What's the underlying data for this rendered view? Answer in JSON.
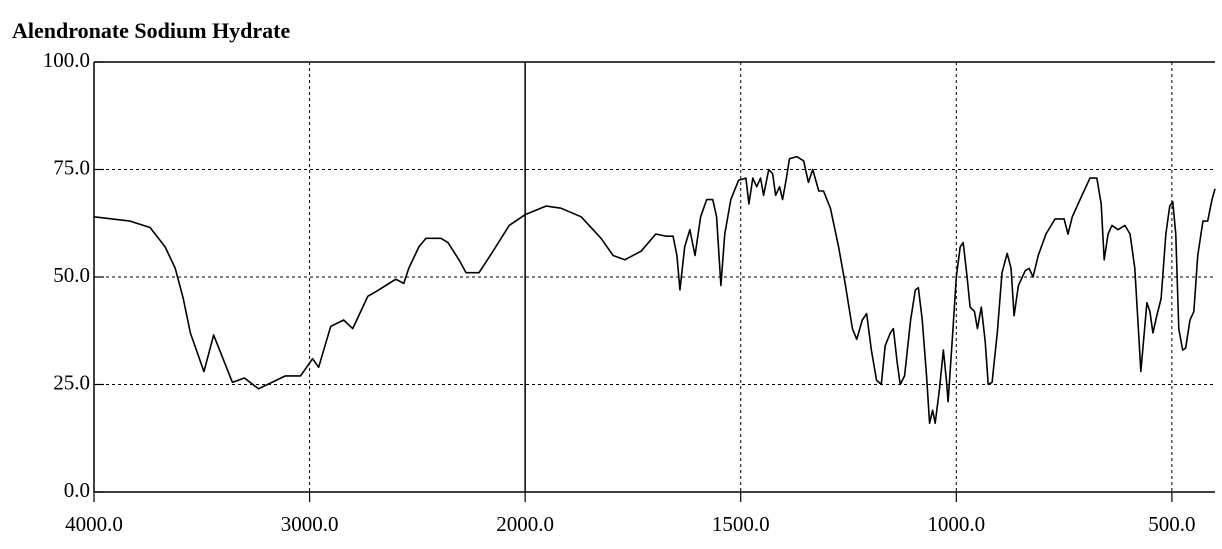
{
  "chart_data": {
    "type": "line",
    "title": "Alendronate Sodium Hydrate",
    "xlim": [
      4000,
      400
    ],
    "xbreak": 2000,
    "ylim": [
      0,
      100
    ],
    "xticks": [
      {
        "value": 4000,
        "label": "4000.0"
      },
      {
        "value": 3000,
        "label": "3000.0"
      },
      {
        "value": 2000,
        "label": "2000.0"
      },
      {
        "value": 1500,
        "label": "1500.0"
      },
      {
        "value": 1000,
        "label": "1000.0"
      },
      {
        "value": 500,
        "label": "500.0"
      }
    ],
    "yticks": [
      {
        "value": 0,
        "label": "0.0"
      },
      {
        "value": 25,
        "label": "25.0"
      },
      {
        "value": 50,
        "label": "50.0"
      },
      {
        "value": 75,
        "label": "75.0"
      },
      {
        "value": 100,
        "label": "100.0"
      }
    ],
    "grid": true,
    "color": "#000000",
    "x": [
      4000,
      3833,
      3740,
      3670,
      3623,
      3586,
      3553,
      3490,
      3445,
      3358,
      3302,
      3237,
      3112,
      3042,
      2986,
      2958,
      2902,
      2842,
      2800,
      2730,
      2679,
      2600,
      2563,
      2540,
      2493,
      2460,
      2391,
      2358,
      2307,
      2274,
      2214,
      2149,
      2074,
      2000,
      1951,
      1917,
      1870,
      1824,
      1796,
      1769,
      1731,
      1697,
      1674,
      1657,
      1648,
      1641,
      1630,
      1618,
      1606,
      1593,
      1579,
      1565,
      1556,
      1546,
      1537,
      1523,
      1505,
      1488,
      1481,
      1472,
      1463,
      1454,
      1447,
      1435,
      1426,
      1419,
      1410,
      1403,
      1394,
      1387,
      1370,
      1354,
      1343,
      1333,
      1319,
      1308,
      1292,
      1273,
      1257,
      1241,
      1231,
      1218,
      1208,
      1197,
      1185,
      1174,
      1165,
      1153,
      1146,
      1137,
      1130,
      1120,
      1106,
      1095,
      1088,
      1079,
      1069,
      1062,
      1055,
      1049,
      1039,
      1030,
      1023,
      1019,
      1009,
      1000,
      991,
      984,
      975,
      968,
      958,
      951,
      942,
      933,
      926,
      917,
      905,
      894,
      882,
      873,
      866,
      856,
      840,
      831,
      822,
      810,
      792,
      771,
      750,
      741,
      731,
      713,
      690,
      674,
      664,
      657,
      648,
      639,
      625,
      609,
      597,
      586,
      576,
      572,
      565,
      558,
      551,
      544,
      535,
      525,
      514,
      505,
      498,
      491,
      484,
      475,
      468,
      458,
      449,
      440,
      428,
      417,
      407,
      400
    ],
    "values": [
      64,
      63,
      61.5,
      57,
      52,
      45,
      37,
      28,
      36.5,
      25.5,
      26.5,
      24,
      27,
      27,
      31,
      29,
      38.5,
      40,
      38,
      45.5,
      47,
      49.5,
      48.5,
      52,
      57,
      59,
      59,
      58,
      54,
      51,
      51,
      56,
      62,
      64.5,
      66.5,
      66,
      64,
      59,
      55,
      54,
      56,
      60,
      59.5,
      59.5,
      55,
      47,
      57,
      61,
      55,
      64,
      68,
      68,
      64,
      48,
      60,
      68,
      72.5,
      73,
      67,
      73,
      71,
      73,
      69,
      75,
      74,
      69,
      71,
      68,
      73,
      77.5,
      78,
      77,
      72,
      75,
      70,
      70,
      66,
      57,
      48,
      38,
      35.5,
      40,
      41.5,
      33,
      26,
      25,
      34,
      37,
      38,
      30,
      25,
      27,
      40,
      47,
      47.5,
      40,
      27,
      16,
      19,
      16,
      24,
      33,
      26,
      21,
      36,
      50,
      57,
      58,
      50,
      43,
      42,
      38,
      43,
      35,
      25,
      25.5,
      37,
      51,
      55.5,
      52,
      41,
      48,
      51.5,
      52,
      50,
      55,
      60,
      63.5,
      63.5,
      60,
      64,
      68,
      73,
      73,
      67,
      54,
      60,
      62,
      61,
      62,
      60,
      52,
      35,
      28,
      36,
      44,
      42,
      37,
      41,
      45,
      60,
      66.5,
      67.5,
      60,
      38,
      33,
      33.5,
      40,
      42,
      55,
      63,
      63,
      68,
      70.5
    ]
  }
}
